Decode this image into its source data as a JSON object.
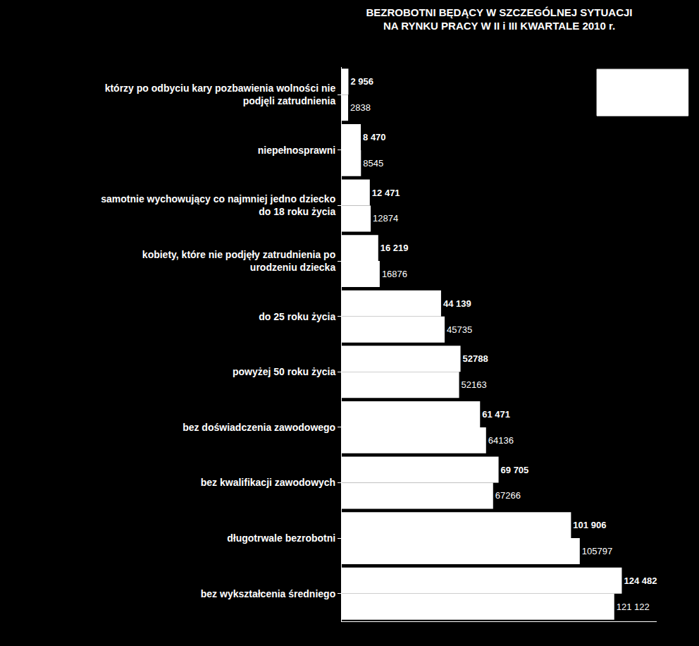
{
  "chart_data": {
    "type": "bar",
    "orientation": "horizontal",
    "title": "BEZROBOTNI BĘDĄCY W SZCZEGÓLNEJ SYTUACJI\nNA RYNKU PRACY W II i III KWARTALE 2010 r.",
    "categories": [
      "którzy po odbyciu kary pozbawienia wolności nie podjęli zatrudnienia",
      "niepełnosprawni",
      "samotnie wychowujący co najmniej jedno dziecko do 18 roku życia",
      "kobiety, które nie podjęły zatrudnienia po urodzeniu dziecka",
      "do 25 roku życia",
      "powyżej 50 roku życia",
      "bez doświadczenia zawodowego",
      "bez kwalifikacji zawodowych",
      "długotrwale bezrobotni",
      "bez wykształcenia średniego"
    ],
    "series": [
      {
        "color": "#ffffff",
        "values": [
          2956,
          8470,
          12471,
          16219,
          44139,
          52788,
          61471,
          69705,
          101906,
          124482
        ],
        "value_labels": [
          "2 956",
          "8 470",
          "12 471",
          "16 219",
          "44 139",
          "52788",
          "61 471",
          "69 705",
          "101 906",
          "124 482"
        ]
      },
      {
        "color": "#ffffff",
        "values": [
          2838,
          8545,
          12874,
          16876,
          45735,
          52163,
          64136,
          67266,
          105797,
          121122
        ],
        "value_labels": [
          "2838",
          "8545",
          "12874",
          "16876",
          "45735",
          "52163",
          "64136",
          "67266",
          "105797",
          "121 122"
        ]
      }
    ],
    "xlim": [
      0,
      140000
    ],
    "data_labels": true,
    "tick_labels": "y",
    "grid": false
  }
}
